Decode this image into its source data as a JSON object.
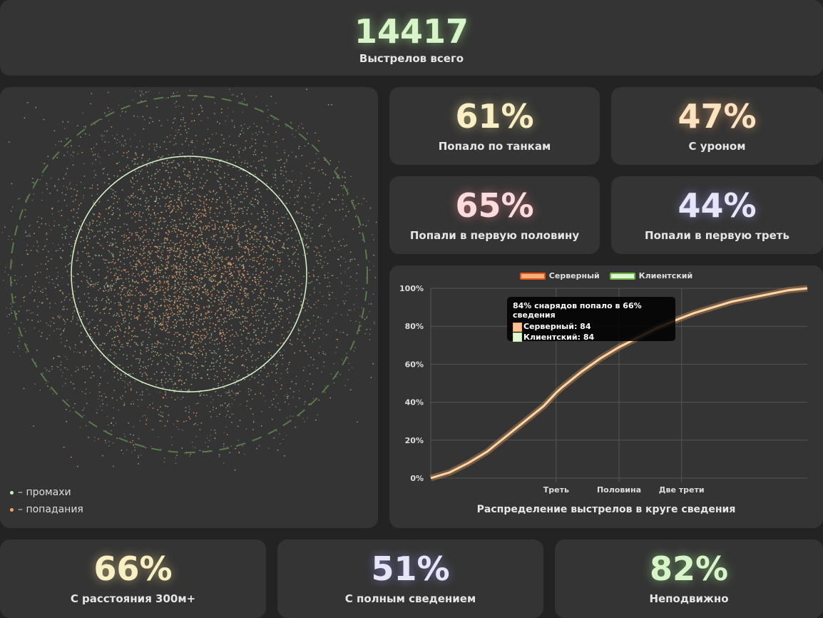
{
  "total": {
    "value": "14417",
    "label": "Выстрелов всего",
    "color": "#d7f5c8"
  },
  "stats": {
    "tanks": {
      "value": "61%",
      "label": "Попало по танкам",
      "color": "#f8efc4"
    },
    "damage": {
      "value": "47%",
      "label": "С уроном",
      "color": "#fde3c2"
    },
    "first_half": {
      "value": "65%",
      "label": "Попали в первую половину",
      "color": "#fbdcdc"
    },
    "first_third": {
      "value": "44%",
      "label": "Попали в первую треть",
      "color": "#e6e6f8"
    },
    "distance": {
      "value": "66%",
      "label": "С расстояния 300м+",
      "color": "#f8efc4"
    },
    "full_aim": {
      "value": "51%",
      "label": "С полным сведением",
      "color": "#e6e6f8"
    },
    "stationary": {
      "value": "82%",
      "label": "Неподвижно",
      "color": "#d7f5c8"
    }
  },
  "scatter": {
    "legend_miss": "– промахи",
    "legend_hit": "– попадания",
    "miss_color": "#c8f0c0",
    "hit_color": "#f5a56a"
  },
  "chart_data": {
    "type": "line",
    "title": "Распределение выстрелов в круге сведения",
    "ylabel": "",
    "xlabel": "",
    "ylim": [
      0,
      100
    ],
    "x": [
      0,
      0.05,
      0.1,
      0.15,
      0.2,
      0.25,
      0.3,
      0.333,
      0.35,
      0.4,
      0.45,
      0.5,
      0.55,
      0.6,
      0.66,
      0.7,
      0.75,
      0.8,
      0.85,
      0.9,
      0.95,
      1.0
    ],
    "series": [
      {
        "name": "Серверный",
        "color": "#f7a35c",
        "values": [
          0,
          3,
          8,
          14,
          22,
          30,
          38,
          45,
          48,
          56,
          63,
          69,
          74,
          79,
          84,
          87,
          90,
          93,
          95,
          97,
          99,
          100
        ]
      },
      {
        "name": "Клиентский",
        "color": "#b4e8a0",
        "values": [
          0,
          3,
          8,
          14,
          22,
          30,
          38,
          45,
          48,
          56,
          63,
          69,
          74,
          79,
          84,
          87,
          90,
          93,
          95,
          97,
          99,
          100
        ]
      }
    ],
    "y_ticks": [
      "0%",
      "20%",
      "40%",
      "60%",
      "80%",
      "100%"
    ],
    "x_ticks": [
      {
        "x": 0.333,
        "label": "Треть"
      },
      {
        "x": 0.5,
        "label": "Половина"
      },
      {
        "x": 0.666,
        "label": "Две трети"
      }
    ],
    "legend": "top",
    "grid": true,
    "tooltip": {
      "title": "84% снарядов попало в 66% сведения",
      "server": "Серверный: 84",
      "client": "Клиентский: 84"
    }
  }
}
